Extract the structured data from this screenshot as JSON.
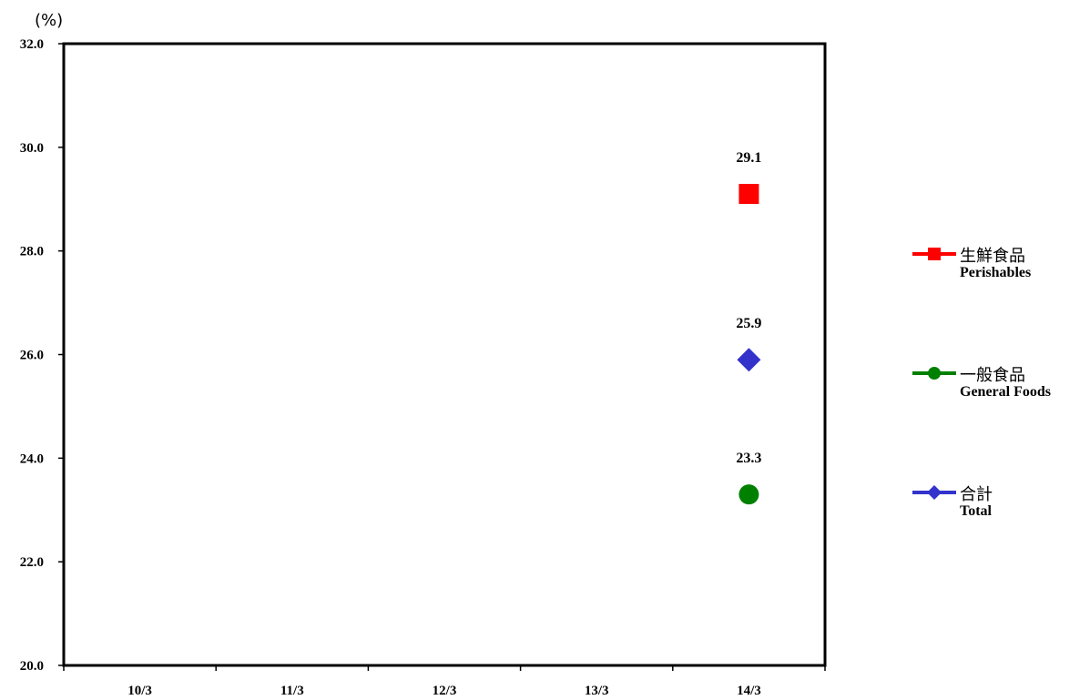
{
  "chart_data": {
    "type": "scatter",
    "unit_label": "(%)",
    "categories": [
      "10/3",
      "11/3",
      "12/3",
      "13/3",
      "14/3"
    ],
    "ylim": [
      20.0,
      32.0
    ],
    "yticks": [
      "20.0",
      "22.0",
      "24.0",
      "26.0",
      "28.0",
      "30.0",
      "32.0"
    ],
    "grid": false,
    "legend_position": "right",
    "series": [
      {
        "name": "生鮮食品",
        "name_en": "Perishables",
        "marker": "square",
        "color": "#ff0000",
        "values": [
          null,
          null,
          null,
          null,
          29.1
        ],
        "labels": [
          "",
          "",
          "",
          "",
          "29.1"
        ]
      },
      {
        "name": "一般食品",
        "name_en": "General Foods",
        "marker": "circle",
        "color": "#008000",
        "values": [
          null,
          null,
          null,
          null,
          23.3
        ],
        "labels": [
          "",
          "",
          "",
          "",
          "23.3"
        ]
      },
      {
        "name": "合計",
        "name_en": "Total",
        "marker": "diamond",
        "color": "#3333cc",
        "values": [
          null,
          null,
          null,
          null,
          25.9
        ],
        "labels": [
          "",
          "",
          "",
          "",
          "25.9"
        ]
      }
    ]
  }
}
